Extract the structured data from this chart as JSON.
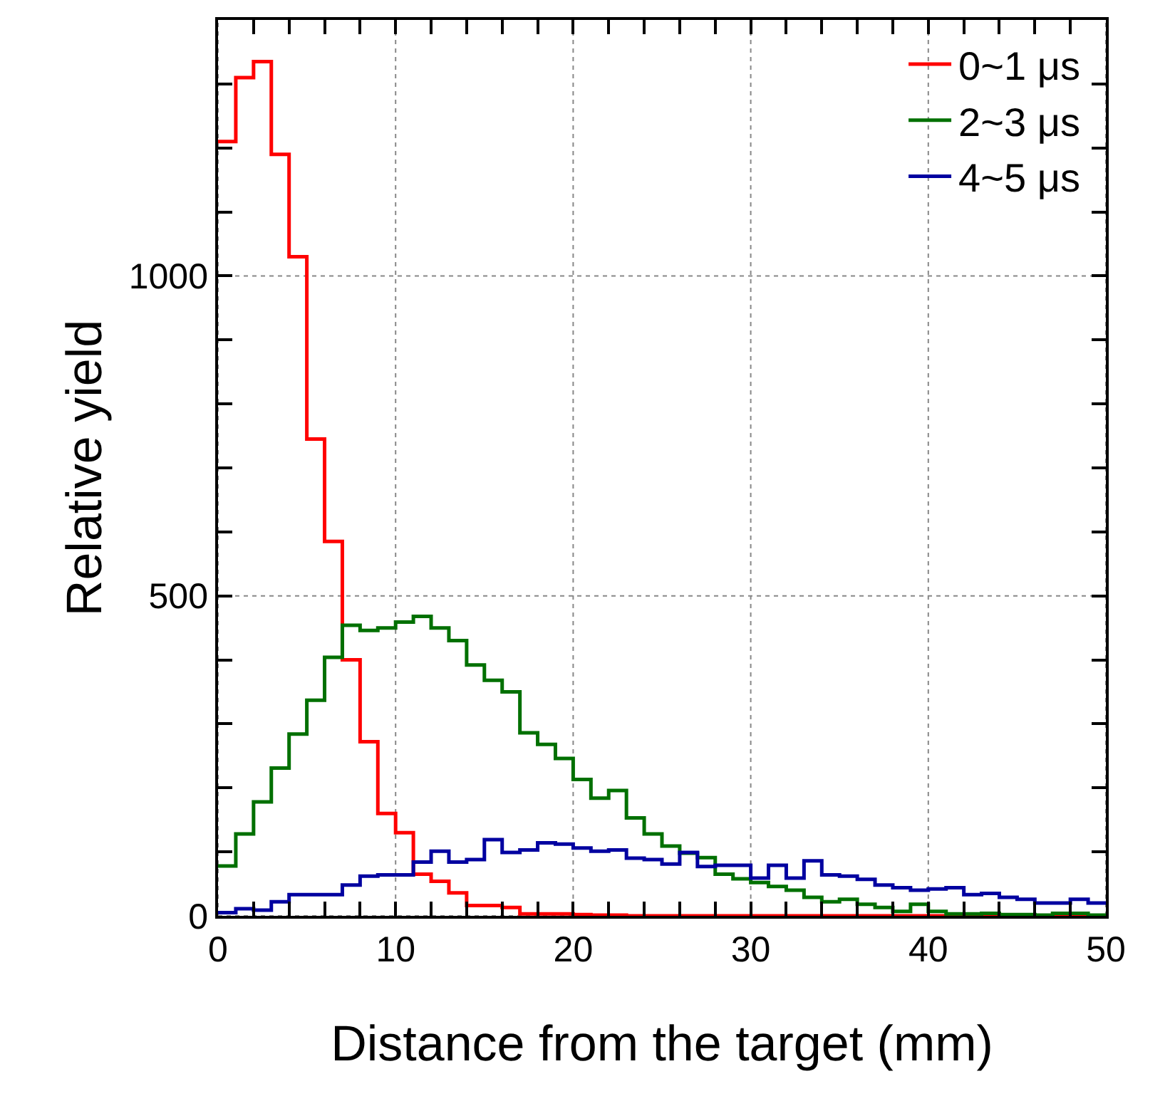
{
  "chart_data": {
    "type": "histogram",
    "xlabel": "Distance from the target (mm)",
    "ylabel": "Relative yield",
    "bins": [
      0,
      1,
      2,
      3,
      4,
      5,
      6,
      7,
      8,
      9,
      10,
      11,
      12,
      13,
      14,
      15,
      16,
      17,
      18,
      19,
      20,
      21,
      22,
      23,
      24,
      25,
      26,
      27,
      28,
      29,
      30,
      31,
      32,
      33,
      34,
      35,
      36,
      37,
      38,
      39,
      40,
      41,
      42,
      43,
      44,
      45,
      46,
      47,
      48,
      49,
      50
    ],
    "series": [
      {
        "name": "0~1 μs",
        "color": "#ff0000",
        "values": [
          1210,
          1310,
          1335,
          1190,
          1030,
          745,
          585,
          400,
          272,
          160,
          130,
          65,
          54,
          36,
          16,
          16,
          13,
          3,
          3,
          3,
          2,
          1,
          1,
          0,
          0,
          0,
          0,
          0,
          0,
          0,
          0,
          0,
          0,
          0,
          0,
          0,
          0,
          0,
          0,
          0,
          0,
          0,
          0,
          0,
          0,
          0,
          0,
          0,
          0,
          0
        ]
      },
      {
        "name": "2~3 μs",
        "color": "#007000",
        "values": [
          78,
          128,
          178,
          231,
          284,
          337,
          404,
          454,
          446,
          450,
          459,
          468,
          450,
          430,
          392,
          368,
          350,
          286,
          268,
          246,
          213,
          184,
          196,
          153,
          128,
          109,
          98,
          91,
          65,
          58,
          52,
          46,
          40,
          29,
          22,
          26,
          18,
          13,
          7,
          18,
          7,
          3,
          3,
          4,
          2,
          2,
          1,
          4,
          4,
          1
        ]
      },
      {
        "name": "4~5 μs",
        "color": "#0000a0",
        "values": [
          5,
          11,
          9,
          22,
          33,
          33,
          33,
          48,
          62,
          64,
          64,
          84,
          101,
          84,
          88,
          119,
          99,
          103,
          114,
          112,
          106,
          101,
          103,
          90,
          88,
          81,
          99,
          77,
          79,
          79,
          59,
          79,
          59,
          86,
          64,
          62,
          57,
          48,
          44,
          40,
          42,
          44,
          33,
          35,
          29,
          26,
          20,
          20,
          26,
          20
        ]
      }
    ],
    "xlim": [
      0,
      50
    ],
    "xticks": [
      0,
      {
        "value": 2,
        "label": null
      },
      {
        "value": 4,
        "label": null
      },
      {
        "value": 6,
        "label": null
      },
      {
        "value": 8,
        "label": null
      },
      10,
      {
        "value": 12,
        "label": null
      },
      {
        "value": 14,
        "label": null
      },
      {
        "value": 16,
        "label": null
      },
      {
        "value": 18,
        "label": null
      },
      20,
      {
        "value": 22,
        "label": null
      },
      {
        "value": 24,
        "label": null
      },
      {
        "value": 26,
        "label": null
      },
      {
        "value": 28,
        "label": null
      },
      30,
      {
        "value": 32,
        "label": null
      },
      {
        "value": 34,
        "label": null
      },
      {
        "value": 36,
        "label": null
      },
      {
        "value": 38,
        "label": null
      },
      40,
      {
        "value": 42,
        "label": null
      },
      {
        "value": 44,
        "label": null
      },
      {
        "value": 46,
        "label": null
      },
      {
        "value": 48,
        "label": null
      },
      50
    ],
    "ylim": [
      0,
      1400
    ],
    "yticks": [
      0,
      {
        "value": 100,
        "label": null
      },
      {
        "value": 200,
        "label": null
      },
      {
        "value": 300,
        "label": null
      },
      {
        "value": 400,
        "label": null
      },
      500,
      {
        "value": 600,
        "label": null
      },
      {
        "value": 700,
        "label": null
      },
      {
        "value": 800,
        "label": null
      },
      {
        "value": 900,
        "label": null
      },
      1000,
      {
        "value": 1100,
        "label": null
      },
      {
        "value": 1200,
        "label": null
      },
      {
        "value": 1300,
        "label": null
      }
    ],
    "grid": true,
    "legend": "top right"
  }
}
